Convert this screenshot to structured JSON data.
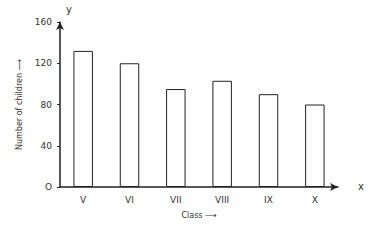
{
  "chart_data": {
    "type": "bar",
    "x_label": "Class ⟶",
    "y_label": "Number of children ⟶",
    "categories": [
      "V",
      "VI",
      "VII",
      "VIII",
      "IX",
      "X"
    ],
    "values": [
      132,
      120,
      95,
      103,
      90,
      80
    ],
    "color": "#ffffff",
    "ylim": [
      0,
      160
    ],
    "yticks": [
      {
        "value": 0,
        "label": "O"
      },
      40,
      80,
      120,
      160
    ],
    "grid": false,
    "annotations": [
      {
        "text": "y"
      },
      {
        "text": "x"
      }
    ]
  }
}
